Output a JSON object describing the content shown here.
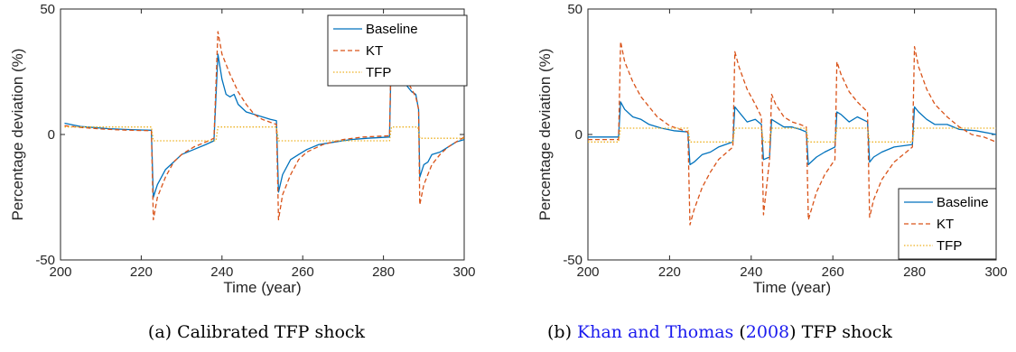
{
  "colors": {
    "baseline": "#0072BD",
    "kt": "#D95319",
    "tfp": "#EDB120",
    "link": "#1a1aee"
  },
  "captions": [
    {
      "label": "(a)",
      "text": "Calibrated TFP shock"
    },
    {
      "label": "(b)",
      "author": "Khan and Thomas",
      "paren_open": "(",
      "year": "2008",
      "paren_close": ")",
      "rest": "TFP shock"
    }
  ],
  "chart_data": [
    {
      "type": "line",
      "xlabel": "Time (year)",
      "ylabel": "Percentage deviation (%)",
      "xlim": [
        200,
        300
      ],
      "ylim": [
        -50,
        50
      ],
      "xticks": [
        "200",
        "220",
        "240",
        "260",
        "280",
        "300"
      ],
      "yticks": [
        "50",
        "0",
        "-50"
      ],
      "legend_position": "top-right",
      "grid": false,
      "series": [
        {
          "name": "Baseline",
          "style": "solid",
          "points": [
            [
              201,
              4.5
            ],
            [
              203,
              3.8
            ],
            [
              205,
              3.2
            ],
            [
              208,
              2.8
            ],
            [
              212,
              2.3
            ],
            [
              216,
              2.0
            ],
            [
              220,
              1.8
            ],
            [
              222.5,
              1.7
            ],
            [
              223,
              -25
            ],
            [
              224,
              -20
            ],
            [
              226,
              -14
            ],
            [
              228,
              -11
            ],
            [
              230,
              -8
            ],
            [
              233,
              -6
            ],
            [
              236,
              -4
            ],
            [
              238,
              -2.5
            ],
            [
              239,
              32
            ],
            [
              240,
              22
            ],
            [
              241,
              16
            ],
            [
              242,
              15
            ],
            [
              243,
              16
            ],
            [
              244,
              12
            ],
            [
              246,
              9
            ],
            [
              248,
              8
            ],
            [
              250,
              7
            ],
            [
              252,
              6
            ],
            [
              253.5,
              5.5
            ],
            [
              254,
              -23
            ],
            [
              255,
              -16
            ],
            [
              257,
              -10
            ],
            [
              259,
              -8
            ],
            [
              261,
              -6
            ],
            [
              264,
              -4
            ],
            [
              268,
              -3
            ],
            [
              272,
              -2
            ],
            [
              276,
              -1.5
            ],
            [
              281.5,
              -1
            ],
            [
              282,
              36
            ],
            [
              283,
              27
            ],
            [
              285,
              21
            ],
            [
              287,
              17
            ],
            [
              288,
              16
            ],
            [
              288.7,
              10
            ],
            [
              289,
              -17
            ],
            [
              290,
              -12
            ],
            [
              291,
              -11
            ],
            [
              292,
              -8
            ],
            [
              294,
              -7
            ],
            [
              296,
              -5
            ],
            [
              298,
              -3
            ],
            [
              300,
              -2
            ]
          ]
        },
        {
          "name": "KT",
          "style": "dashed",
          "points": [
            [
              201,
              3.5
            ],
            [
              205,
              2.8
            ],
            [
              210,
              2.2
            ],
            [
              215,
              1.8
            ],
            [
              220,
              1.6
            ],
            [
              222.5,
              1.5
            ],
            [
              223,
              -34
            ],
            [
              224,
              -25
            ],
            [
              226,
              -17
            ],
            [
              228,
              -11
            ],
            [
              230,
              -8
            ],
            [
              233,
              -5
            ],
            [
              236,
              -3
            ],
            [
              238,
              -1.5
            ],
            [
              239,
              41
            ],
            [
              240,
              32
            ],
            [
              242,
              24
            ],
            [
              244,
              17
            ],
            [
              246,
              12
            ],
            [
              248,
              8
            ],
            [
              250,
              6
            ],
            [
              253.5,
              4
            ],
            [
              254,
              -34
            ],
            [
              255,
              -24
            ],
            [
              257,
              -16
            ],
            [
              259,
              -10
            ],
            [
              261,
              -7
            ],
            [
              265,
              -4
            ],
            [
              270,
              -2
            ],
            [
              275,
              -1
            ],
            [
              281.5,
              -0.5
            ],
            [
              282,
              41
            ],
            [
              283,
              32
            ],
            [
              285,
              24
            ],
            [
              287,
              18
            ],
            [
              288,
              15
            ],
            [
              288.7,
              10
            ],
            [
              289,
              -28
            ],
            [
              290,
              -20
            ],
            [
              292,
              -12
            ],
            [
              294,
              -8
            ],
            [
              296,
              -5
            ],
            [
              298,
              -3
            ],
            [
              300,
              -1
            ]
          ]
        },
        {
          "name": "TFP",
          "style": "dotted",
          "points": [
            [
              201,
              3
            ],
            [
              222.5,
              3
            ],
            [
              223,
              -2.5
            ],
            [
              238.5,
              -2.5
            ],
            [
              239,
              3
            ],
            [
              253.5,
              3
            ],
            [
              254,
              -2.5
            ],
            [
              281.5,
              -2.5
            ],
            [
              282,
              3
            ],
            [
              288.5,
              3
            ],
            [
              289,
              -1.5
            ],
            [
              300,
              -1.5
            ]
          ]
        }
      ]
    },
    {
      "type": "line",
      "xlabel": "Time (year)",
      "ylabel": "Percentage deviation (%)",
      "xlim": [
        200,
        300
      ],
      "ylim": [
        -50,
        50
      ],
      "xticks": [
        "200",
        "220",
        "240",
        "260",
        "280",
        "300"
      ],
      "yticks": [
        "50",
        "0",
        "-50"
      ],
      "legend_position": "bottom-right",
      "grid": false,
      "series": [
        {
          "name": "Baseline",
          "style": "solid",
          "points": [
            [
              200,
              -1
            ],
            [
              207.5,
              -1
            ],
            [
              208,
              13
            ],
            [
              209,
              10
            ],
            [
              211,
              7
            ],
            [
              213,
              6
            ],
            [
              215,
              4
            ],
            [
              218,
              2.5
            ],
            [
              221,
              1.5
            ],
            [
              224.5,
              1
            ],
            [
              225,
              -12
            ],
            [
              226,
              -11
            ],
            [
              228,
              -8
            ],
            [
              230,
              -7
            ],
            [
              232,
              -5
            ],
            [
              235.5,
              -3
            ],
            [
              236,
              11
            ],
            [
              237,
              9
            ],
            [
              239,
              5
            ],
            [
              241,
              6
            ],
            [
              242.5,
              4
            ],
            [
              243,
              -10
            ],
            [
              244.5,
              -9
            ],
            [
              245,
              6
            ],
            [
              246,
              5
            ],
            [
              248,
              3
            ],
            [
              250,
              3
            ],
            [
              252,
              2
            ],
            [
              253.5,
              1
            ],
            [
              254,
              -12
            ],
            [
              256,
              -9
            ],
            [
              258,
              -7
            ],
            [
              260.5,
              -5
            ],
            [
              261,
              9
            ],
            [
              262,
              8
            ],
            [
              264,
              5
            ],
            [
              266,
              7
            ],
            [
              268.5,
              5
            ],
            [
              269,
              -11
            ],
            [
              270,
              -9
            ],
            [
              272,
              -7
            ],
            [
              275,
              -5
            ],
            [
              279.5,
              -4
            ],
            [
              280,
              11
            ],
            [
              281,
              9
            ],
            [
              283,
              6
            ],
            [
              285,
              4
            ],
            [
              288,
              4
            ],
            [
              291,
              2
            ],
            [
              295,
              1.5
            ],
            [
              300,
              0
            ]
          ]
        },
        {
          "name": "KT",
          "style": "dashed",
          "points": [
            [
              200,
              -2
            ],
            [
              207.5,
              -2
            ],
            [
              208,
              37
            ],
            [
              209,
              29
            ],
            [
              211,
              21
            ],
            [
              213,
              15
            ],
            [
              215,
              11
            ],
            [
              217,
              7
            ],
            [
              220,
              3.5
            ],
            [
              224.5,
              1
            ],
            [
              225,
              -36
            ],
            [
              226,
              -30
            ],
            [
              228,
              -21
            ],
            [
              230,
              -15
            ],
            [
              232,
              -10
            ],
            [
              235.5,
              -5
            ],
            [
              236,
              33
            ],
            [
              237,
              27
            ],
            [
              239,
              18
            ],
            [
              241,
              12
            ],
            [
              242.5,
              7
            ],
            [
              243,
              -32
            ],
            [
              244.5,
              -10
            ],
            [
              245,
              16
            ],
            [
              246,
              12
            ],
            [
              248,
              7
            ],
            [
              250,
              5
            ],
            [
              252,
              4
            ],
            [
              253.5,
              3
            ],
            [
              254,
              -34
            ],
            [
              256,
              -23
            ],
            [
              258,
              -16
            ],
            [
              260.5,
              -10
            ],
            [
              261,
              29
            ],
            [
              262,
              24
            ],
            [
              264,
              17
            ],
            [
              266,
              13
            ],
            [
              268.5,
              9
            ],
            [
              269,
              -33
            ],
            [
              270,
              -26
            ],
            [
              272,
              -18
            ],
            [
              275,
              -11
            ],
            [
              279.5,
              -5
            ],
            [
              280,
              35
            ],
            [
              281,
              27
            ],
            [
              283,
              18
            ],
            [
              285,
              12
            ],
            [
              288,
              7
            ],
            [
              291,
              3
            ],
            [
              294,
              0
            ],
            [
              297,
              -1
            ],
            [
              300,
              -3
            ]
          ]
        },
        {
          "name": "TFP",
          "style": "dotted",
          "points": [
            [
              200,
              -3
            ],
            [
              207.5,
              -3
            ],
            [
              208,
              2.5
            ],
            [
              224.5,
              2.5
            ],
            [
              225,
              -3
            ],
            [
              235.5,
              -3
            ],
            [
              236,
              2.5
            ],
            [
              242.5,
              2.5
            ],
            [
              243,
              -3
            ],
            [
              244.5,
              -3
            ],
            [
              245,
              2.5
            ],
            [
              253.5,
              2.5
            ],
            [
              254,
              -3
            ],
            [
              260.5,
              -3
            ],
            [
              261,
              2.5
            ],
            [
              268.5,
              2.5
            ],
            [
              269,
              -3
            ],
            [
              279.5,
              -3
            ],
            [
              280,
              2.5
            ],
            [
              300,
              2.5
            ]
          ]
        }
      ]
    }
  ]
}
